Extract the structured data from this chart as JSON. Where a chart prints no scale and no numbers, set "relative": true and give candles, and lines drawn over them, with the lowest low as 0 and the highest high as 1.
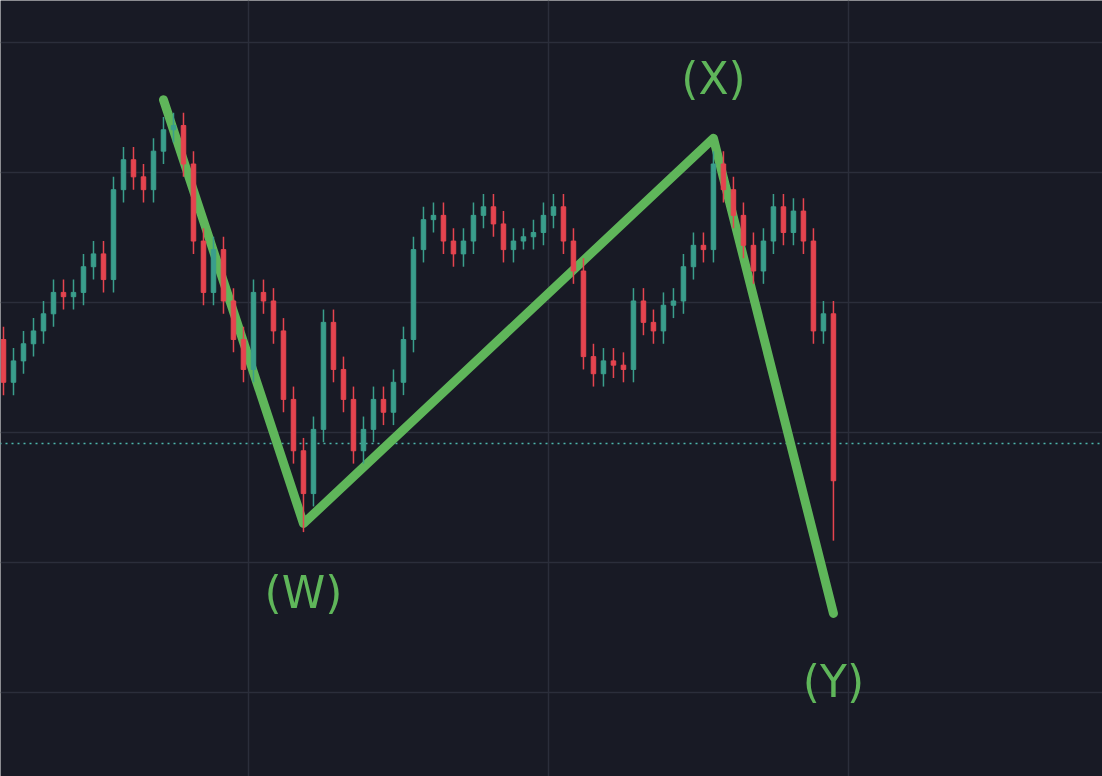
{
  "chart_data": {
    "type": "candlestick",
    "relative": true,
    "grid": true,
    "categories": [
      null,
      null,
      null,
      null,
      null,
      null,
      null,
      null,
      null,
      null,
      null,
      null,
      null,
      null,
      null,
      null,
      null,
      null,
      null,
      null,
      null,
      null,
      null,
      null,
      null,
      null,
      null,
      null,
      null,
      null,
      null,
      null,
      null,
      null,
      null,
      null,
      null,
      null,
      null,
      null,
      null,
      null,
      null,
      null,
      null,
      null,
      null,
      null,
      null,
      null,
      null,
      null,
      null,
      null,
      null,
      null,
      null,
      null,
      null,
      null,
      null,
      null,
      null,
      null,
      null,
      null,
      null,
      null,
      null,
      null,
      null,
      null,
      null,
      null,
      null,
      null,
      null,
      null,
      null,
      null,
      null,
      null,
      null,
      null
    ],
    "colors": [
      "#e5444f",
      "#3a9e8c",
      "#3a9e8c",
      "#3a9e8c",
      "#3a9e8c",
      "#3a9e8c",
      "#e5444f",
      "#3a9e8c",
      "#3a9e8c",
      "#3a9e8c",
      "#e5444f",
      "#3a9e8c",
      "#3a9e8c",
      "#e5444f",
      "#e5444f",
      "#3a9e8c",
      "#3a9e8c",
      "#3a9e8c",
      "#e5444f",
      "#e5444f",
      "#e5444f",
      "#3a9e8c",
      "#e5444f",
      "#e5444f",
      "#e5444f",
      "#3a9e8c",
      "#e5444f",
      "#e5444f",
      "#e5444f",
      "#e5444f",
      "#e5444f",
      "#3a9e8c",
      "#3a9e8c",
      "#e5444f",
      "#e5444f",
      "#e5444f",
      "#3a9e8c",
      "#3a9e8c",
      "#e5444f",
      "#3a9e8c",
      "#3a9e8c",
      "#3a9e8c",
      "#3a9e8c",
      "#3a9e8c",
      "#e5444f",
      "#e5444f",
      "#3a9e8c",
      "#3a9e8c",
      "#3a9e8c",
      "#e5444f",
      "#e5444f",
      "#3a9e8c",
      "#3a9e8c",
      "#3a9e8c",
      "#3a9e8c",
      "#3a9e8c",
      "#e5444f",
      "#e5444f",
      "#e5444f",
      "#e5444f",
      "#3a9e8c",
      "#e5444f",
      "#e5444f",
      "#3a9e8c",
      "#e5444f",
      "#e5444f",
      "#3a9e8c",
      "#3a9e8c",
      "#3a9e8c",
      "#3a9e8c",
      "#e5444f",
      "#3a9e8c",
      "#e5444f",
      "#e5444f",
      "#e5444f",
      "#e5444f",
      "#3a9e8c",
      "#3a9e8c",
      "#e5444f",
      "#3a9e8c",
      "#e5444f",
      "#e5444f",
      "#3a9e8c",
      "#e5444f"
    ],
    "ohlc": [
      [
        0.47,
        0.5,
        0.34,
        0.37
      ],
      [
        0.37,
        0.45,
        0.34,
        0.42
      ],
      [
        0.42,
        0.49,
        0.39,
        0.46
      ],
      [
        0.46,
        0.52,
        0.43,
        0.49
      ],
      [
        0.49,
        0.56,
        0.46,
        0.53
      ],
      [
        0.53,
        0.61,
        0.5,
        0.58
      ],
      [
        0.58,
        0.61,
        0.54,
        0.57
      ],
      [
        0.57,
        0.61,
        0.54,
        0.58
      ],
      [
        0.58,
        0.67,
        0.55,
        0.64
      ],
      [
        0.64,
        0.7,
        0.61,
        0.67
      ],
      [
        0.67,
        0.7,
        0.58,
        0.61
      ],
      [
        0.61,
        0.85,
        0.58,
        0.82
      ],
      [
        0.82,
        0.92,
        0.79,
        0.89
      ],
      [
        0.89,
        0.92,
        0.82,
        0.85
      ],
      [
        0.85,
        0.88,
        0.79,
        0.82
      ],
      [
        0.82,
        0.94,
        0.79,
        0.91
      ],
      [
        0.91,
        0.99,
        0.88,
        0.96
      ],
      [
        0.96,
        1.0,
        0.93,
        0.97
      ],
      [
        0.97,
        1.0,
        0.85,
        0.88
      ],
      [
        0.88,
        0.91,
        0.67,
        0.7
      ],
      [
        0.7,
        0.73,
        0.55,
        0.58
      ],
      [
        0.58,
        0.71,
        0.55,
        0.68
      ],
      [
        0.68,
        0.71,
        0.53,
        0.56
      ],
      [
        0.56,
        0.59,
        0.44,
        0.47
      ],
      [
        0.47,
        0.5,
        0.37,
        0.4
      ],
      [
        0.4,
        0.61,
        0.37,
        0.58
      ],
      [
        0.58,
        0.61,
        0.53,
        0.56
      ],
      [
        0.56,
        0.59,
        0.46,
        0.49
      ],
      [
        0.49,
        0.52,
        0.3,
        0.33
      ],
      [
        0.33,
        0.36,
        0.18,
        0.21
      ],
      [
        0.21,
        0.24,
        0.02,
        0.11
      ],
      [
        0.11,
        0.29,
        0.08,
        0.26
      ],
      [
        0.26,
        0.54,
        0.23,
        0.51
      ],
      [
        0.51,
        0.54,
        0.37,
        0.4
      ],
      [
        0.4,
        0.43,
        0.3,
        0.33
      ],
      [
        0.33,
        0.36,
        0.18,
        0.21
      ],
      [
        0.21,
        0.29,
        0.18,
        0.26
      ],
      [
        0.26,
        0.36,
        0.23,
        0.33
      ],
      [
        0.33,
        0.36,
        0.27,
        0.3
      ],
      [
        0.3,
        0.4,
        0.27,
        0.37
      ],
      [
        0.37,
        0.5,
        0.34,
        0.47
      ],
      [
        0.47,
        0.71,
        0.44,
        0.68
      ],
      [
        0.68,
        0.78,
        0.65,
        0.75
      ],
      [
        0.75,
        0.79,
        0.72,
        0.76
      ],
      [
        0.76,
        0.79,
        0.67,
        0.7
      ],
      [
        0.7,
        0.73,
        0.64,
        0.67
      ],
      [
        0.67,
        0.73,
        0.64,
        0.7
      ],
      [
        0.7,
        0.79,
        0.67,
        0.76
      ],
      [
        0.76,
        0.81,
        0.73,
        0.78
      ],
      [
        0.78,
        0.81,
        0.71,
        0.74
      ],
      [
        0.74,
        0.77,
        0.65,
        0.68
      ],
      [
        0.68,
        0.73,
        0.65,
        0.7
      ],
      [
        0.7,
        0.73,
        0.68,
        0.71
      ],
      [
        0.71,
        0.75,
        0.68,
        0.72
      ],
      [
        0.72,
        0.79,
        0.69,
        0.76
      ],
      [
        0.76,
        0.81,
        0.73,
        0.78
      ],
      [
        0.78,
        0.81,
        0.67,
        0.7
      ],
      [
        0.7,
        0.73,
        0.6,
        0.63
      ],
      [
        0.63,
        0.66,
        0.4,
        0.43
      ],
      [
        0.43,
        0.46,
        0.36,
        0.39
      ],
      [
        0.39,
        0.45,
        0.36,
        0.42
      ],
      [
        0.42,
        0.45,
        0.38,
        0.41
      ],
      [
        0.41,
        0.44,
        0.37,
        0.4
      ],
      [
        0.4,
        0.59,
        0.37,
        0.56
      ],
      [
        0.56,
        0.59,
        0.48,
        0.51
      ],
      [
        0.51,
        0.54,
        0.46,
        0.49
      ],
      [
        0.49,
        0.58,
        0.46,
        0.55
      ],
      [
        0.55,
        0.59,
        0.52,
        0.56
      ],
      [
        0.56,
        0.67,
        0.53,
        0.64
      ],
      [
        0.64,
        0.72,
        0.61,
        0.69
      ],
      [
        0.69,
        0.72,
        0.65,
        0.68
      ],
      [
        0.68,
        0.91,
        0.65,
        0.88
      ],
      [
        0.88,
        0.91,
        0.79,
        0.82
      ],
      [
        0.82,
        0.85,
        0.73,
        0.76
      ],
      [
        0.76,
        0.79,
        0.66,
        0.69
      ],
      [
        0.69,
        0.72,
        0.6,
        0.63
      ],
      [
        0.63,
        0.73,
        0.6,
        0.7
      ],
      [
        0.7,
        0.81,
        0.67,
        0.78
      ],
      [
        0.78,
        0.81,
        0.69,
        0.72
      ],
      [
        0.72,
        0.8,
        0.69,
        0.77
      ],
      [
        0.77,
        0.8,
        0.67,
        0.7
      ],
      [
        0.7,
        0.73,
        0.46,
        0.49
      ],
      [
        0.49,
        0.56,
        0.46,
        0.53
      ],
      [
        0.53,
        0.56,
        0.0,
        0.14
      ]
    ],
    "series": [
      {
        "type": "line",
        "color": "#5fb65a",
        "values": [
          null,
          null,
          null,
          null,
          null,
          null,
          null,
          null,
          null,
          null,
          null,
          null,
          null,
          null,
          null,
          null,
          1.03,
          null,
          null,
          null,
          null,
          null,
          null,
          null,
          null,
          null,
          null,
          null,
          null,
          null,
          0.04,
          null,
          null,
          null,
          null,
          null,
          null,
          null,
          null,
          null,
          null,
          null,
          null,
          null,
          null,
          null,
          null,
          null,
          null,
          null,
          null,
          null,
          null,
          null,
          null,
          null,
          null,
          null,
          null,
          null,
          null,
          null,
          null,
          null,
          null,
          null,
          null,
          null,
          null,
          null,
          null,
          0.94,
          null,
          null,
          null,
          null,
          null,
          null,
          null,
          null,
          null,
          null,
          null,
          -0.17
        ]
      }
    ],
    "ref_lines": [
      {
        "axis": "y",
        "value": 0.227,
        "color": "#4db6ac",
        "line_style": "dotted"
      }
    ],
    "annotations": [
      "(W)",
      "(X)",
      "(Y)"
    ]
  }
}
